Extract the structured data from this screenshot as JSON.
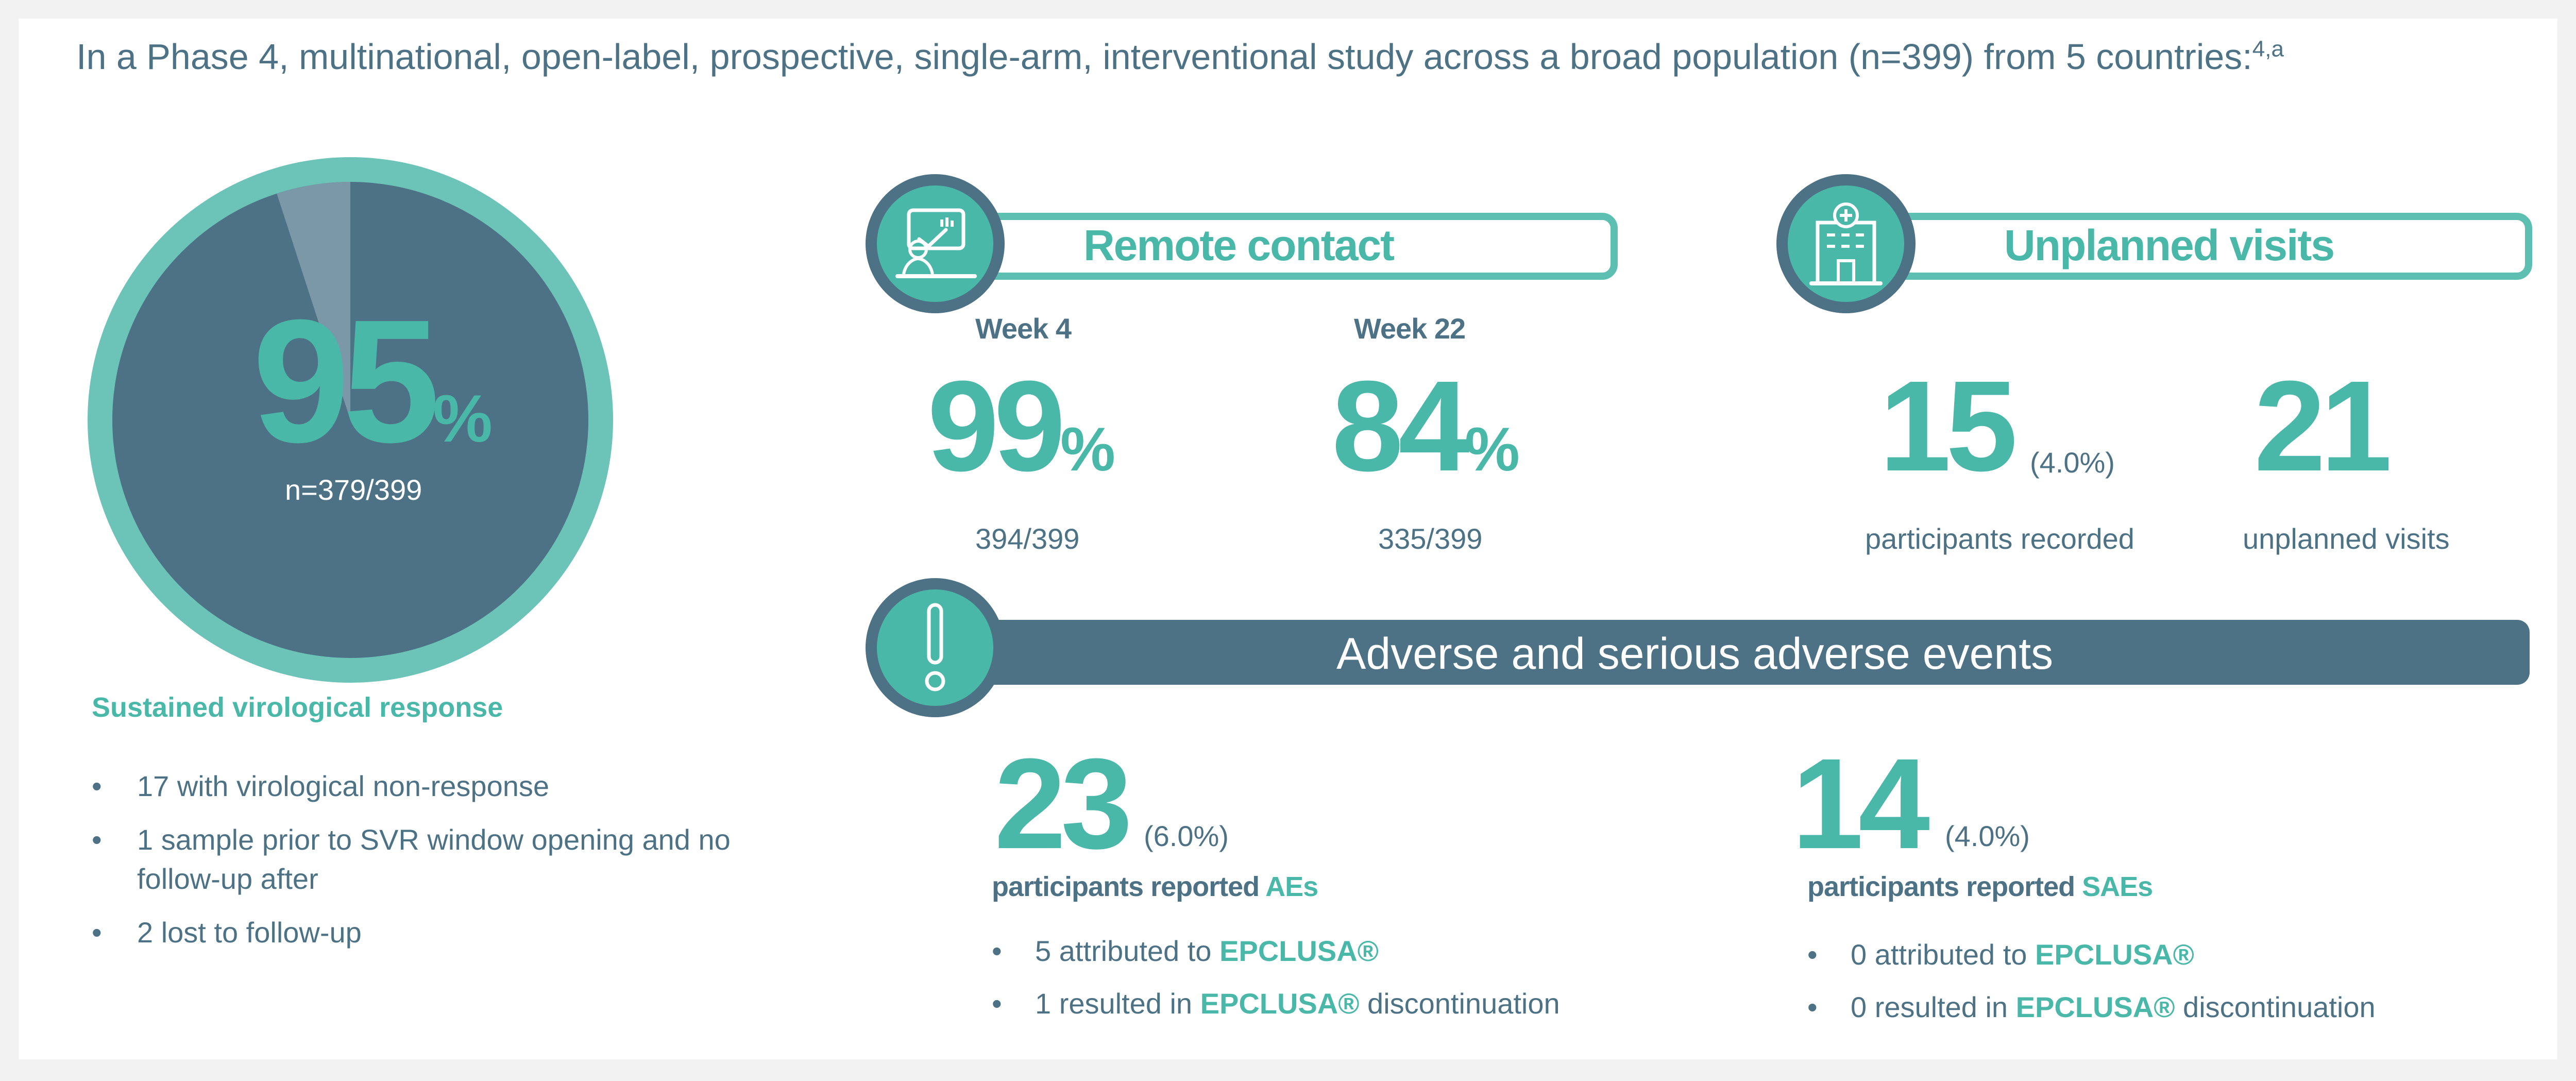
{
  "intro": {
    "text": "In a Phase 4, multinational, open-label, prospective, single-arm, interventional study across a broad population (n=399) from 5 countries:",
    "sup": "4,a"
  },
  "svr": {
    "value": "95",
    "unit": "%",
    "n": "n=379/399",
    "title": "Sustained virological response",
    "bullets": [
      "17 with virological non-response",
      "1 sample prior to SVR window opening and no follow-up after",
      "2 lost to follow-up"
    ]
  },
  "remote": {
    "title": "Remote contact",
    "icon": "video-call-icon",
    "week4": {
      "label": "Week 4",
      "value": "99",
      "unit": "%",
      "count": "394/399"
    },
    "week22": {
      "label": "Week 22",
      "value": "84",
      "unit": "%",
      "count": "335/399"
    }
  },
  "unplanned": {
    "title": "Unplanned visits",
    "icon": "hospital-icon",
    "participants": {
      "value": "15",
      "pct": "(4.0%)",
      "label": "participants recorded"
    },
    "visits": {
      "value": "21",
      "label": "unplanned visits"
    }
  },
  "adverse": {
    "title": "Adverse and serious adverse events",
    "icon": "exclamation-icon",
    "ae": {
      "value": "23",
      "pct": "(6.0%)",
      "lead": "participants reported ",
      "lead_term": "AEs",
      "items": [
        {
          "pre": "5 attributed to ",
          "brand": "EPCLUSA®",
          "post": ""
        },
        {
          "pre": "1 resulted in ",
          "brand": "EPCLUSA®",
          "post": " discontinuation"
        }
      ]
    },
    "sae": {
      "value": "14",
      "pct": "(4.0%)",
      "lead": "participants reported ",
      "lead_term": "SAEs",
      "items": [
        {
          "pre": "0 attributed to ",
          "brand": "EPCLUSA®",
          "post": ""
        },
        {
          "pre": "0 resulted in ",
          "brand": "EPCLUSA®",
          "post": " discontinuation"
        }
      ]
    }
  },
  "colors": {
    "teal": "#4ab8a8",
    "slate": "#4e7285",
    "ring": "#6cc3b8",
    "slice": "#7a98a8"
  },
  "chart_data": {
    "type": "pie",
    "title": "",
    "slices": [
      {
        "label": "Sustained virological response",
        "value": 95
      },
      {
        "label": "",
        "value": 5
      }
    ]
  }
}
